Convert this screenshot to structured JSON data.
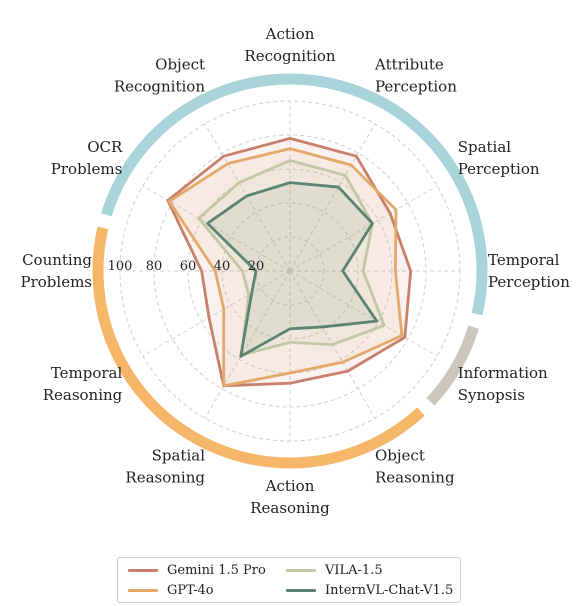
{
  "chart_data": {
    "type": "radar",
    "axes": [
      "Action Recognition",
      "Attribute Perception",
      "Spatial Perception",
      "Temporal Perception",
      "Information Synopsis",
      "Object Reasoning",
      "Action Reasoning",
      "Spatial Reasoning",
      "Temporal Reasoning",
      "Counting Problems",
      "OCR Problems",
      "Object Recognition"
    ],
    "axis_label_lines": [
      [
        "Action",
        "Recognition"
      ],
      [
        "Attribute",
        "Perception"
      ],
      [
        "Spatial",
        "Perception"
      ],
      [
        "Temporal",
        "Perception"
      ],
      [
        "Information",
        "Synopsis"
      ],
      [
        "Object",
        "Reasoning"
      ],
      [
        "Action",
        "Reasoning"
      ],
      [
        "Spatial",
        "Reasoning"
      ],
      [
        "Temporal",
        "Reasoning"
      ],
      [
        "Counting",
        "Problems"
      ],
      [
        "OCR",
        "Problems"
      ],
      [
        "Object",
        "Recognition"
      ]
    ],
    "radial_ticks": [
      20,
      40,
      60,
      80,
      100
    ],
    "rlim": [
      0,
      100
    ],
    "grid": true,
    "category_bands": [
      {
        "from_axis": 10,
        "to_axis": 3,
        "color": "#a8d3d8"
      },
      {
        "from_axis": 4,
        "to_axis": 4,
        "color": "#c9c7bd"
      },
      {
        "from_axis": 5,
        "to_axis": 9,
        "color": "#f5b669"
      }
    ],
    "series": [
      {
        "name": "Gemini 1.5 Pro",
        "color": "#c7806a",
        "values": [
          78,
          78,
          68,
          71,
          78,
          68,
          66,
          78,
          55,
          52,
          83,
          78
        ]
      },
      {
        "name": "GPT-4o",
        "color": "#e3a96b",
        "values": [
          72,
          72,
          72,
          62,
          76,
          62,
          60,
          78,
          45,
          44,
          82,
          73
        ]
      },
      {
        "name": "VILA-1.5",
        "color": "#c2c7a5",
        "values": [
          65,
          65,
          56,
          43,
          64,
          50,
          42,
          57,
          28,
          28,
          62,
          60
        ]
      },
      {
        "name": "InternVL-Chat-V1.5",
        "color": "#5b8570",
        "values": [
          52,
          57,
          56,
          31,
          59,
          38,
          34,
          58,
          26,
          20,
          56,
          51
        ]
      }
    ],
    "legend_position": "bottom"
  }
}
